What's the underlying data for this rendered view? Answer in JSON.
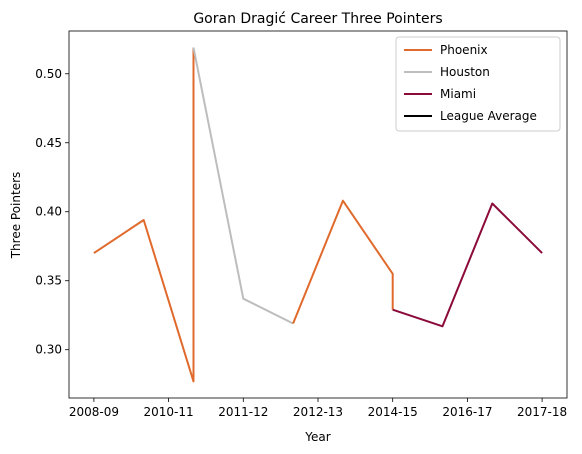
{
  "chart_data": {
    "type": "line",
    "title": "Goran Dragić Career Three Pointers",
    "xlabel": "Year",
    "ylabel": "Three Pointers",
    "x_tick_labels": [
      "2008-09",
      "2010-11",
      "2011-12",
      "2012-13",
      "2014-15",
      "2016-17",
      "2017-18"
    ],
    "x_tick_positions": [
      0,
      1.5,
      3,
      4.5,
      6,
      7.5,
      9
    ],
    "xlim": [
      -0.5,
      9.5
    ],
    "ylim": [
      0.265,
      0.531
    ],
    "y_ticks": [
      0.3,
      0.35,
      0.4,
      0.45,
      0.5
    ],
    "y_tick_labels": [
      "0.30",
      "0.35",
      "0.40",
      "0.45",
      "0.50"
    ],
    "grid": false,
    "legend_placement": "top-right",
    "series": [
      {
        "name": "Phoenix",
        "color": "#e06a2c",
        "points": [
          [
            0,
            0.37
          ],
          [
            1,
            0.394
          ],
          [
            2,
            0.277
          ],
          [
            2,
            0.519
          ]
        ]
      },
      {
        "name": "Houston",
        "color": "#bdbdbd",
        "points": [
          [
            2,
            0.519
          ],
          [
            3,
            0.337
          ],
          [
            4,
            0.319
          ]
        ]
      },
      {
        "name": "Phoenix",
        "color": "#e06a2c",
        "legend": false,
        "points": [
          [
            4,
            0.319
          ],
          [
            5,
            0.408
          ],
          [
            6,
            0.355
          ],
          [
            6,
            0.329
          ]
        ]
      },
      {
        "name": "Miami",
        "color": "#8b0a3a",
        "points": [
          [
            6,
            0.329
          ],
          [
            7,
            0.317
          ],
          [
            8,
            0.406
          ],
          [
            9,
            0.37
          ]
        ]
      },
      {
        "name": "League Average",
        "color": "#000000",
        "points": []
      }
    ]
  }
}
